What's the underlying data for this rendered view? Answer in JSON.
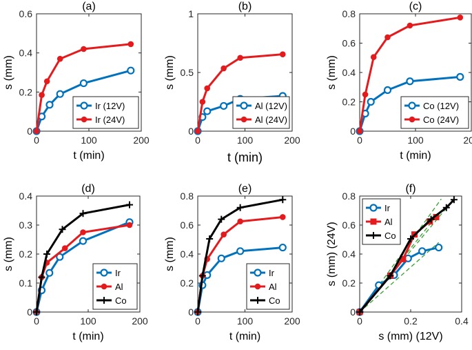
{
  "colors": {
    "ir": "#0072BD",
    "ir24": "#E41A1C",
    "al": "#E41A1C",
    "co": "#000000",
    "fit": "#33a02c"
  },
  "chart_data": [
    {
      "id": "a",
      "type": "line",
      "title": "(a)",
      "xlabel": "t (min)",
      "ylabel": "s (mm)",
      "xlim": [
        0,
        200
      ],
      "ylim": [
        0,
        0.6
      ],
      "xticks": [
        0,
        100,
        200
      ],
      "yticks": [
        0,
        0.2,
        0.4,
        0.6
      ],
      "xtick_labels": [
        "0",
        "100",
        "200"
      ],
      "ytick_labels": [
        "0",
        "0.2",
        "0.4",
        "0.6"
      ],
      "legend_position": "bottom-right",
      "series": [
        {
          "name": "Ir (12V)",
          "color_key": "ir",
          "marker": "circle",
          "x": [
            0,
            10,
            25,
            45,
            90,
            180
          ],
          "y": [
            0,
            0.075,
            0.135,
            0.19,
            0.245,
            0.31
          ]
        },
        {
          "name": "Ir (24V)",
          "color_key": "ir24",
          "marker": "dot",
          "x": [
            0,
            10,
            20,
            45,
            90,
            180
          ],
          "y": [
            0,
            0.185,
            0.255,
            0.37,
            0.42,
            0.445
          ]
        }
      ]
    },
    {
      "id": "b",
      "type": "line",
      "title": "(b)",
      "xlabel": "t (min)",
      "ylabel": "s (mm)",
      "xlim": [
        0,
        200
      ],
      "ylim": [
        0,
        1
      ],
      "xticks": [
        0,
        100,
        200
      ],
      "yticks": [
        0,
        0.5,
        1
      ],
      "xtick_labels": [
        "0",
        "100",
        "200"
      ],
      "ytick_labels": [
        "0",
        "0.5",
        "1"
      ],
      "legend_position": "bottom-right",
      "big_xlabel": true,
      "series": [
        {
          "name": "Al (12V)",
          "color_key": "ir",
          "marker": "circle",
          "x": [
            0,
            10,
            20,
            55,
            90,
            180
          ],
          "y": [
            0,
            0.12,
            0.17,
            0.215,
            0.275,
            0.3
          ]
        },
        {
          "name": "Al (24V)",
          "color_key": "al",
          "marker": "dot",
          "x": [
            0,
            10,
            20,
            55,
            90,
            180
          ],
          "y": [
            0,
            0.25,
            0.365,
            0.535,
            0.625,
            0.655
          ]
        }
      ]
    },
    {
      "id": "c",
      "type": "line",
      "title": "(c)",
      "xlabel": "t (min)",
      "ylabel": "s (mm)",
      "xlim": [
        0,
        200
      ],
      "ylim": [
        0,
        0.8
      ],
      "xticks": [
        0,
        100,
        200
      ],
      "yticks": [
        0,
        0.2,
        0.4,
        0.6,
        0.8
      ],
      "xtick_labels": [
        "0",
        "100",
        "200"
      ],
      "ytick_labels": [
        "0",
        "0.2",
        "0.4",
        "0.6",
        "0.8"
      ],
      "legend_position": "bottom-right",
      "series": [
        {
          "name": "Co (12V)",
          "color_key": "ir",
          "marker": "circle",
          "x": [
            0,
            10,
            20,
            50,
            90,
            180
          ],
          "y": [
            0,
            0.12,
            0.2,
            0.28,
            0.34,
            0.37
          ]
        },
        {
          "name": "Co (24V)",
          "color_key": "ir24",
          "marker": "dot",
          "x": [
            0,
            10,
            25,
            50,
            90,
            180
          ],
          "y": [
            0,
            0.25,
            0.505,
            0.64,
            0.72,
            0.775
          ]
        }
      ]
    },
    {
      "id": "d",
      "type": "line",
      "title": "(d)",
      "xlabel": "t (min)",
      "ylabel": "s (mm)",
      "xlim": [
        0,
        200
      ],
      "ylim": [
        0,
        0.4
      ],
      "xticks": [
        0,
        100,
        200
      ],
      "yticks": [
        0,
        0.1,
        0.2,
        0.3,
        0.4
      ],
      "xtick_labels": [
        "0",
        "100",
        "200"
      ],
      "ytick_labels": [
        "0",
        "0.1",
        "0.2",
        "0.3",
        "0.4"
      ],
      "legend_position": "bottom-right",
      "series": [
        {
          "name": "Ir",
          "color_key": "ir",
          "marker": "circle",
          "x": [
            0,
            10,
            25,
            45,
            90,
            180
          ],
          "y": [
            0,
            0.075,
            0.135,
            0.19,
            0.245,
            0.31
          ]
        },
        {
          "name": "Al",
          "color_key": "al",
          "marker": "dot",
          "x": [
            0,
            10,
            20,
            55,
            90,
            180
          ],
          "y": [
            0,
            0.12,
            0.17,
            0.22,
            0.275,
            0.3
          ]
        },
        {
          "name": "Co",
          "color_key": "co",
          "marker": "plus",
          "x": [
            0,
            10,
            20,
            50,
            90,
            180
          ],
          "y": [
            0,
            0.12,
            0.2,
            0.285,
            0.34,
            0.37
          ]
        }
      ]
    },
    {
      "id": "e",
      "type": "line",
      "title": "(e)",
      "xlabel": "t (min)",
      "ylabel": "s (mm)",
      "xlim": [
        0,
        200
      ],
      "ylim": [
        0,
        0.8
      ],
      "xticks": [
        0,
        100,
        200
      ],
      "yticks": [
        0,
        0.2,
        0.4,
        0.6,
        0.8
      ],
      "xtick_labels": [
        "0",
        "100",
        "200"
      ],
      "ytick_labels": [
        "0",
        "0.2",
        "0.4",
        "0.6",
        "0.8"
      ],
      "legend_position": "bottom-right",
      "series": [
        {
          "name": "Ir",
          "color_key": "ir",
          "marker": "circle",
          "x": [
            0,
            10,
            20,
            50,
            90,
            180
          ],
          "y": [
            0,
            0.185,
            0.255,
            0.37,
            0.42,
            0.445
          ]
        },
        {
          "name": "Al",
          "color_key": "al",
          "marker": "dot",
          "x": [
            0,
            10,
            20,
            55,
            90,
            180
          ],
          "y": [
            0,
            0.25,
            0.365,
            0.535,
            0.625,
            0.655
          ]
        },
        {
          "name": "Co",
          "color_key": "co",
          "marker": "plus",
          "x": [
            0,
            10,
            25,
            50,
            90,
            180
          ],
          "y": [
            0,
            0.25,
            0.505,
            0.64,
            0.72,
            0.775
          ]
        }
      ]
    },
    {
      "id": "f",
      "type": "line",
      "title": "(f)",
      "xlabel": "s (mm) (12V)",
      "ylabel": "s (mm) (24V)",
      "xlim": [
        0,
        0.4
      ],
      "ylim": [
        0,
        0.8
      ],
      "xticks": [
        0,
        0.2,
        0.4
      ],
      "yticks": [
        0,
        0.2,
        0.4,
        0.6,
        0.8
      ],
      "xtick_labels": [
        "0",
        "0.2",
        "0.4"
      ],
      "ytick_labels": [
        "0",
        "0.2",
        "0.4",
        "0.6",
        "0.8"
      ],
      "legend_position": "top-left",
      "series": [
        {
          "name": "Ir",
          "color_key": "ir",
          "marker": "circle",
          "x": [
            0,
            0.075,
            0.135,
            0.19,
            0.245,
            0.31
          ],
          "y": [
            0,
            0.185,
            0.255,
            0.37,
            0.42,
            0.445
          ]
        },
        {
          "name": "Al",
          "color_key": "al",
          "marker": "square",
          "x": [
            0,
            0.12,
            0.17,
            0.215,
            0.275,
            0.3
          ],
          "y": [
            0,
            0.25,
            0.365,
            0.535,
            0.625,
            0.655
          ]
        },
        {
          "name": "Co",
          "color_key": "co",
          "marker": "plus",
          "x": [
            0,
            0.12,
            0.2,
            0.28,
            0.34,
            0.37
          ],
          "y": [
            0,
            0.25,
            0.505,
            0.64,
            0.72,
            0.775
          ]
        }
      ],
      "fit_lines": [
        {
          "name": "fit-ir",
          "x": [
            0,
            0.31
          ],
          "y": [
            0,
            0.48
          ]
        },
        {
          "name": "fit-al",
          "x": [
            0,
            0.3
          ],
          "y": [
            0,
            0.66
          ]
        },
        {
          "name": "fit-co",
          "x": [
            0,
            0.37
          ],
          "y": [
            0,
            0.78
          ]
        },
        {
          "name": "fit-steep",
          "x": [
            0,
            0.32
          ],
          "y": [
            0,
            0.78
          ]
        }
      ]
    }
  ]
}
